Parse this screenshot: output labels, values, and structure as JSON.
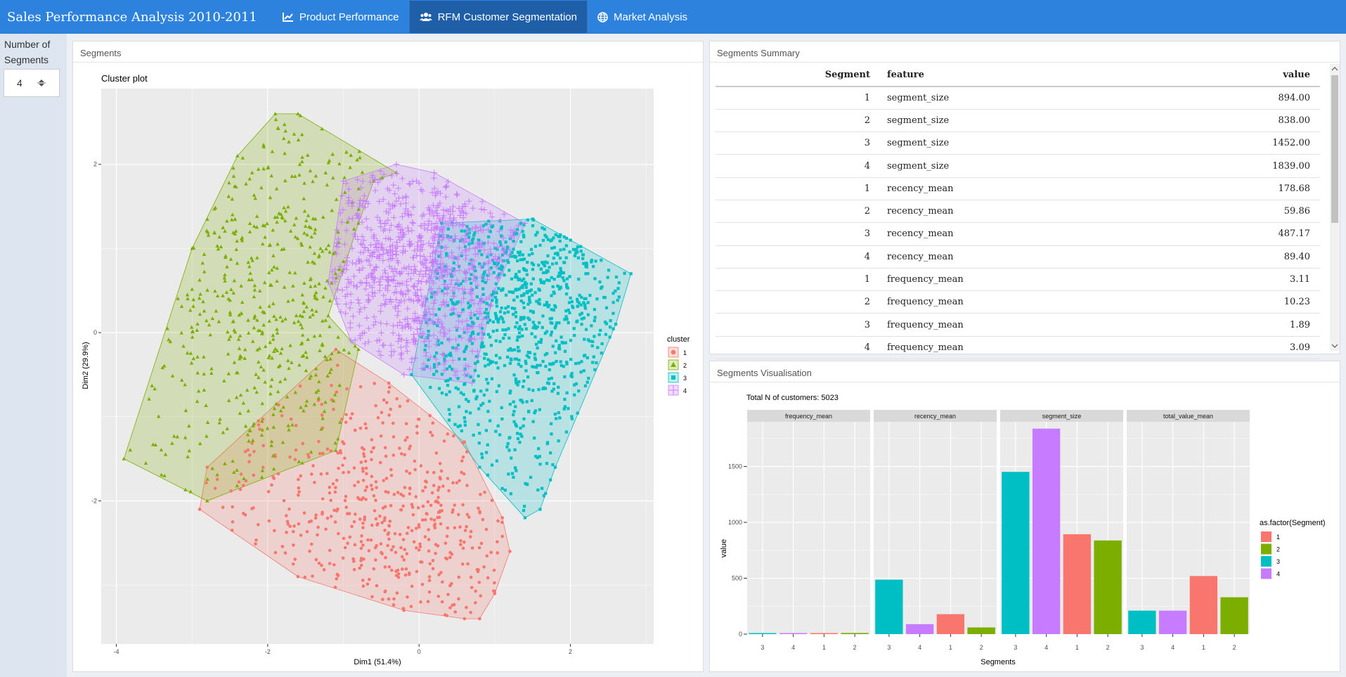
{
  "app_title": "Sales Performance Analysis 2010-2011",
  "tabs": [
    {
      "label": "Product Performance",
      "icon": "line-chart-icon"
    },
    {
      "label": "RFM Customer Segmentation",
      "icon": "users-icon"
    },
    {
      "label": "Market Analysis",
      "icon": "globe-icon"
    }
  ],
  "sidebar": {
    "label": "Number of Segments",
    "value": "4"
  },
  "segments_panel": {
    "title": "Segments"
  },
  "summary_panel": {
    "title": "Segments Summary",
    "columns": [
      "Segment",
      "feature",
      "value"
    ],
    "rows": [
      [
        "1",
        "segment_size",
        "894.00"
      ],
      [
        "2",
        "segment_size",
        "838.00"
      ],
      [
        "3",
        "segment_size",
        "1452.00"
      ],
      [
        "4",
        "segment_size",
        "1839.00"
      ],
      [
        "1",
        "recency_mean",
        "178.68"
      ],
      [
        "2",
        "recency_mean",
        "59.86"
      ],
      [
        "3",
        "recency_mean",
        "487.17"
      ],
      [
        "4",
        "recency_mean",
        "89.40"
      ],
      [
        "1",
        "frequency_mean",
        "3.11"
      ],
      [
        "2",
        "frequency_mean",
        "10.23"
      ],
      [
        "3",
        "frequency_mean",
        "1.89"
      ],
      [
        "4",
        "frequency_mean",
        "3.09"
      ]
    ]
  },
  "vis_panel": {
    "title": "Segments Visualisation"
  },
  "colors": {
    "seg1": "#f8766d",
    "seg2": "#7cae00",
    "seg3": "#00bfc4",
    "seg4": "#c77cff",
    "nav": "#2d82de"
  },
  "chart_data": [
    {
      "type": "scatter",
      "title": "Cluster plot",
      "xlabel": "Dim1 (51.4%)",
      "ylabel": "Dim2 (29.9%)",
      "xlim": [
        -4.2,
        3.1
      ],
      "ylim": [
        -3.7,
        2.9
      ],
      "xticks": [
        -4,
        -2,
        0,
        2
      ],
      "yticks": [
        -2,
        0,
        2
      ],
      "grid": true,
      "legend_title": "cluster",
      "legend_position": "right",
      "series": [
        {
          "name": "1",
          "marker": "circle",
          "color": "#f8766d",
          "center": [
            -0.3,
            -2.2
          ],
          "hull": [
            [
              -2.9,
              -2.1
            ],
            [
              -2.8,
              -1.6
            ],
            [
              -1.1,
              -0.2
            ],
            [
              -0.4,
              -0.6
            ],
            [
              0.6,
              -1.3
            ],
            [
              1.1,
              -2.2
            ],
            [
              1.2,
              -2.6
            ],
            [
              1.0,
              -3.1
            ],
            [
              0.8,
              -3.4
            ],
            [
              0.6,
              -3.4
            ],
            [
              -0.2,
              -3.3
            ],
            [
              -1.6,
              -2.9
            ]
          ]
        },
        {
          "name": "2",
          "marker": "triangle",
          "color": "#7cae00",
          "center": [
            -2.0,
            0.6
          ],
          "hull": [
            [
              -3.9,
              -1.5
            ],
            [
              -2.8,
              -2.0
            ],
            [
              -1.1,
              -1.4
            ],
            [
              -0.8,
              -0.2
            ],
            [
              -1.2,
              0.2
            ],
            [
              -0.8,
              1.3
            ],
            [
              -0.6,
              1.8
            ],
            [
              -0.3,
              1.9
            ],
            [
              -1.6,
              2.6
            ],
            [
              -1.9,
              2.6
            ],
            [
              -2.4,
              2.1
            ],
            [
              -3.0,
              1.0
            ]
          ]
        },
        {
          "name": "3",
          "marker": "square",
          "color": "#00bfc4",
          "center": [
            1.4,
            0.4
          ],
          "hull": [
            [
              -0.1,
              -0.5
            ],
            [
              0.8,
              -1.6
            ],
            [
              1.4,
              -2.2
            ],
            [
              1.6,
              -2.1
            ],
            [
              1.8,
              -1.6
            ],
            [
              2.6,
              0.1
            ],
            [
              2.8,
              0.7
            ],
            [
              1.5,
              1.35
            ],
            [
              0.3,
              1.3
            ],
            [
              0.1,
              0.4
            ]
          ]
        },
        {
          "name": "4",
          "marker": "plus",
          "color": "#c77cff",
          "center": [
            0.0,
            0.8
          ],
          "hull": [
            [
              -0.2,
              -0.5
            ],
            [
              -0.9,
              -0.1
            ],
            [
              -1.2,
              0.6
            ],
            [
              -1.0,
              1.8
            ],
            [
              -0.3,
              2.0
            ],
            [
              0.2,
              1.9
            ],
            [
              1.4,
              1.3
            ],
            [
              1.0,
              0.5
            ],
            [
              0.7,
              -0.6
            ]
          ]
        }
      ]
    },
    {
      "type": "bar",
      "annotation": "Total N of customers:  5023",
      "xlabel": "Segments",
      "ylabel": "value",
      "ylim": [
        0,
        1900
      ],
      "yticks": [
        0,
        500,
        1000,
        1500
      ],
      "legend_title": "as.factor(Segment)",
      "legend_position": "right",
      "legend": [
        {
          "name": "1",
          "color": "#f8766d"
        },
        {
          "name": "2",
          "color": "#7cae00"
        },
        {
          "name": "3",
          "color": "#00bfc4"
        },
        {
          "name": "4",
          "color": "#c77cff"
        }
      ],
      "categories": [
        "3",
        "4",
        "1",
        "2"
      ],
      "facets": [
        {
          "name": "frequency_mean",
          "values": [
            1.89,
            3.09,
            3.11,
            10.23
          ]
        },
        {
          "name": "recency_mean",
          "values": [
            487.17,
            89.4,
            178.68,
            59.86
          ]
        },
        {
          "name": "segment_size",
          "values": [
            1452,
            1839,
            894,
            838
          ]
        },
        {
          "name": "total_value_mean",
          "values": [
            210,
            210,
            520,
            330
          ]
        }
      ]
    }
  ]
}
